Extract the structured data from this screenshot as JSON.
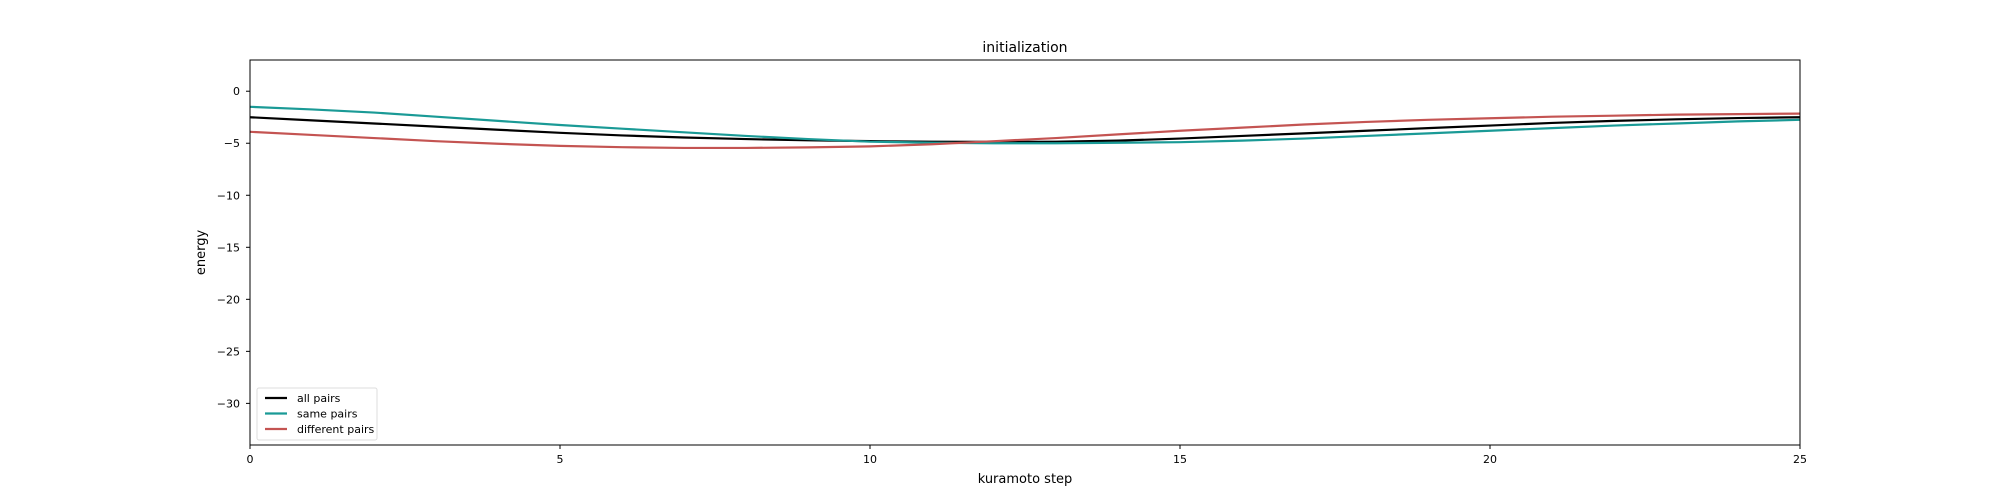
{
  "chart_data": {
    "type": "line",
    "title": "initialization",
    "xlabel": "kuramoto step",
    "ylabel": "energy",
    "xlim": [
      0,
      25
    ],
    "ylim": [
      -34,
      3
    ],
    "xticks": [
      0,
      5,
      10,
      15,
      20,
      25
    ],
    "yticks": [
      0,
      -5,
      -10,
      -15,
      -20,
      -25,
      -30
    ],
    "grid": false,
    "legend_position": "lower-left",
    "x": [
      0,
      1,
      2,
      3,
      4,
      5,
      6,
      7,
      8,
      9,
      10,
      11,
      12,
      13,
      14,
      15,
      16,
      17,
      18,
      19,
      20,
      21,
      22,
      23,
      24,
      25
    ],
    "series": [
      {
        "name": "all pairs",
        "color": "#000000",
        "values": [
          -2.5,
          -2.8,
          -3.1,
          -3.4,
          -3.7,
          -4.0,
          -4.25,
          -4.45,
          -4.6,
          -4.72,
          -4.8,
          -4.85,
          -4.87,
          -4.85,
          -4.75,
          -4.55,
          -4.3,
          -4.05,
          -3.8,
          -3.55,
          -3.3,
          -3.05,
          -2.85,
          -2.7,
          -2.58,
          -2.5
        ]
      },
      {
        "name": "same pairs",
        "color": "#1a9a96",
        "values": [
          -1.5,
          -1.75,
          -2.05,
          -2.45,
          -2.85,
          -3.25,
          -3.6,
          -3.95,
          -4.3,
          -4.6,
          -4.85,
          -4.95,
          -5.0,
          -5.0,
          -4.95,
          -4.9,
          -4.75,
          -4.55,
          -4.3,
          -4.05,
          -3.8,
          -3.55,
          -3.3,
          -3.1,
          -2.9,
          -2.75
        ]
      },
      {
        "name": "different pairs",
        "color": "#c45452",
        "values": [
          -3.9,
          -4.2,
          -4.5,
          -4.8,
          -5.05,
          -5.25,
          -5.38,
          -5.45,
          -5.45,
          -5.4,
          -5.3,
          -5.1,
          -4.8,
          -4.5,
          -4.15,
          -3.8,
          -3.5,
          -3.2,
          -2.95,
          -2.75,
          -2.6,
          -2.45,
          -2.35,
          -2.25,
          -2.2,
          -2.15
        ]
      }
    ]
  }
}
